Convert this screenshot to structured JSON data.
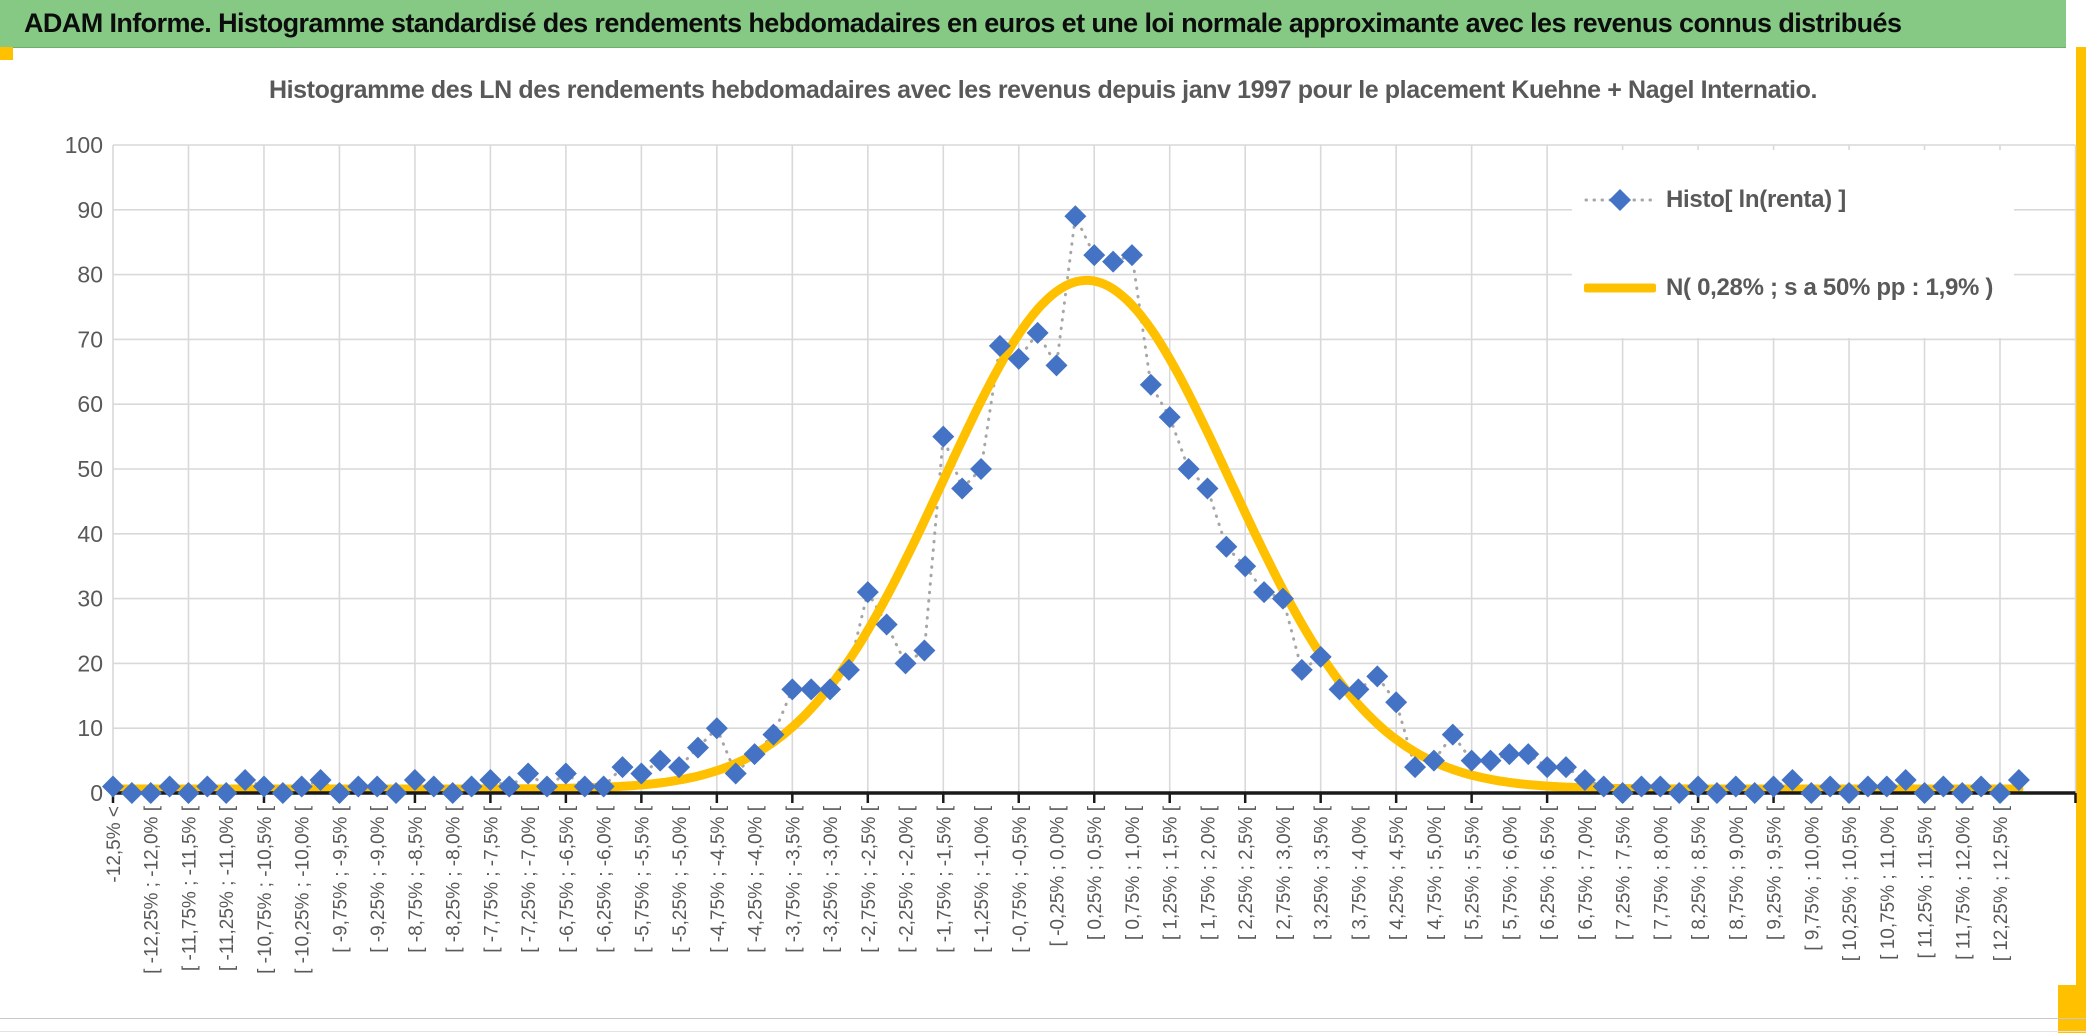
{
  "header": {
    "title": "ADAM Informe. Histogramme standardisé des rendements hebdomadaires en euros et une loi normale approximante avec les revenus connus distribués"
  },
  "chart": {
    "title": "Histogramme des LN des rendements hebdomadaires avec les revenus depuis janv 1997 pour le placement Kuehne + Nagel Internatio.",
    "legend": {
      "items": [
        {
          "label": "Histo[ ln(renta) ]",
          "marker": "diamond-dotted-line"
        },
        {
          "label": "N( 0,28% ; s a 50% pp : 1,9% )",
          "marker": "thick-line"
        }
      ]
    }
  },
  "colors": {
    "header_green": "#85C985",
    "accent_gold": "#FFC000",
    "series_blue": "#4472C4",
    "dotted_gray": "#A6A6A6",
    "curve_gold": "#FFC000",
    "gridline": "#D9D9D9",
    "axis_black": "#1a1a1a",
    "text_gray": "#595959"
  },
  "chart_data": {
    "type": "scatter",
    "title": "Histogramme des LN des rendements hebdomadaires avec les revenus depuis janv 1997 pour le placement Kuehne + Nagel Internatio.",
    "ylabel": "",
    "xlabel": "",
    "ylim": [
      0,
      100
    ],
    "yticks": [
      0,
      10,
      20,
      30,
      40,
      50,
      60,
      70,
      80,
      90,
      100
    ],
    "grid": true,
    "legend_position": "upper-right",
    "bin_width_pct": 0.25,
    "x_label_every_bins": 2,
    "categories": [
      "-12,5% <",
      "[ -12,25% ; -12,0% [",
      "[ -11,75% ; -11,5% [",
      "[ -11,25% ; -11,0% [",
      "[ -10,75% ; -10,5% [",
      "[ -10,25% ; -10,0% [",
      "[ -9,75% ; -9,5% [",
      "[ -9,25% ; -9,0% [",
      "[ -8,75% ; -8,5% [",
      "[ -8,25% ; -8,0% [",
      "[ -7,75% ; -7,5% [",
      "[ -7,25% ; -7,0% [",
      "[ -6,75% ; -6,5% [",
      "[ -6,25% ; -6,0% [",
      "[ -5,75% ; -5,5% [",
      "[ -5,25% ; -5,0% [",
      "[ -4,75% ; -4,5% [",
      "[ -4,25% ; -4,0% [",
      "[ -3,75% ; -3,5% [",
      "[ -3,25% ; -3,0% [",
      "[ -2,75% ; -2,5% [",
      "[ -2,25% ; -2,0% [",
      "[ -1,75% ; -1,5% [",
      "[ -1,25% ; -1,0% [",
      "[ -0,75% ; -0,5% [",
      "[ -0,25% ; 0,0% [",
      "[ 0,25% ; 0,5% [",
      "[ 0,75% ; 1,0% [",
      "[ 1,25% ; 1,5% [",
      "[ 1,75% ; 2,0% [",
      "[ 2,25% ; 2,5% [",
      "[ 2,75% ; 3,0% [",
      "[ 3,25% ; 3,5% [",
      "[ 3,75% ; 4,0% [",
      "[ 4,25% ; 4,5% [",
      "[ 4,75% ; 5,0% [",
      "[ 5,25% ; 5,5% [",
      "[ 5,75% ; 6,0% [",
      "[ 6,25% ; 6,5% [",
      "[ 6,75% ; 7,0% [",
      "[ 7,25% ; 7,5% [",
      "[ 7,75% ; 8,0% [",
      "[ 8,25% ; 8,5% [",
      "[ 8,75% ; 9,0% [",
      "[ 9,25% ; 9,5% [",
      "[ 9,75% ; 10,0% [",
      "[ 10,25% ; 10,5% [",
      "[ 10,75% ; 11,0% [",
      "[ 11,25% ; 11,5% [",
      "[ 11,75% ; 12,0% [",
      "[ 12,25% ; 12,5% ["
    ],
    "series": [
      {
        "name": "Histo[ ln(renta) ]",
        "style": "blue-diamonds-dotted-line",
        "values": [
          1,
          0,
          0,
          1,
          0,
          1,
          0,
          2,
          1,
          0,
          1,
          2,
          0,
          1,
          1,
          0,
          2,
          1,
          0,
          1,
          2,
          1,
          3,
          1,
          3,
          1,
          1,
          4,
          3,
          5,
          4,
          7,
          10,
          3,
          6,
          9,
          16,
          16,
          16,
          19,
          31,
          26,
          20,
          22,
          55,
          47,
          50,
          69,
          67,
          71,
          66,
          89,
          83,
          82,
          83,
          63,
          58,
          50,
          47,
          38,
          35,
          31,
          30,
          19,
          21,
          16,
          16,
          18,
          14,
          4,
          5,
          9,
          5,
          5,
          6,
          6,
          4,
          4,
          2,
          1,
          0,
          1,
          1,
          0,
          1,
          0,
          1,
          0,
          1,
          2,
          0,
          1,
          0,
          1,
          1,
          2,
          0,
          1,
          0,
          1,
          0,
          2
        ]
      },
      {
        "name": "N( 0,28% ; s a 50% pp : 1,9% )",
        "style": "gold-normal-curve",
        "curve": "normal",
        "peak_height": 78.5,
        "mean_bin": 51.6,
        "sigma_bins": 7.6
      }
    ]
  }
}
